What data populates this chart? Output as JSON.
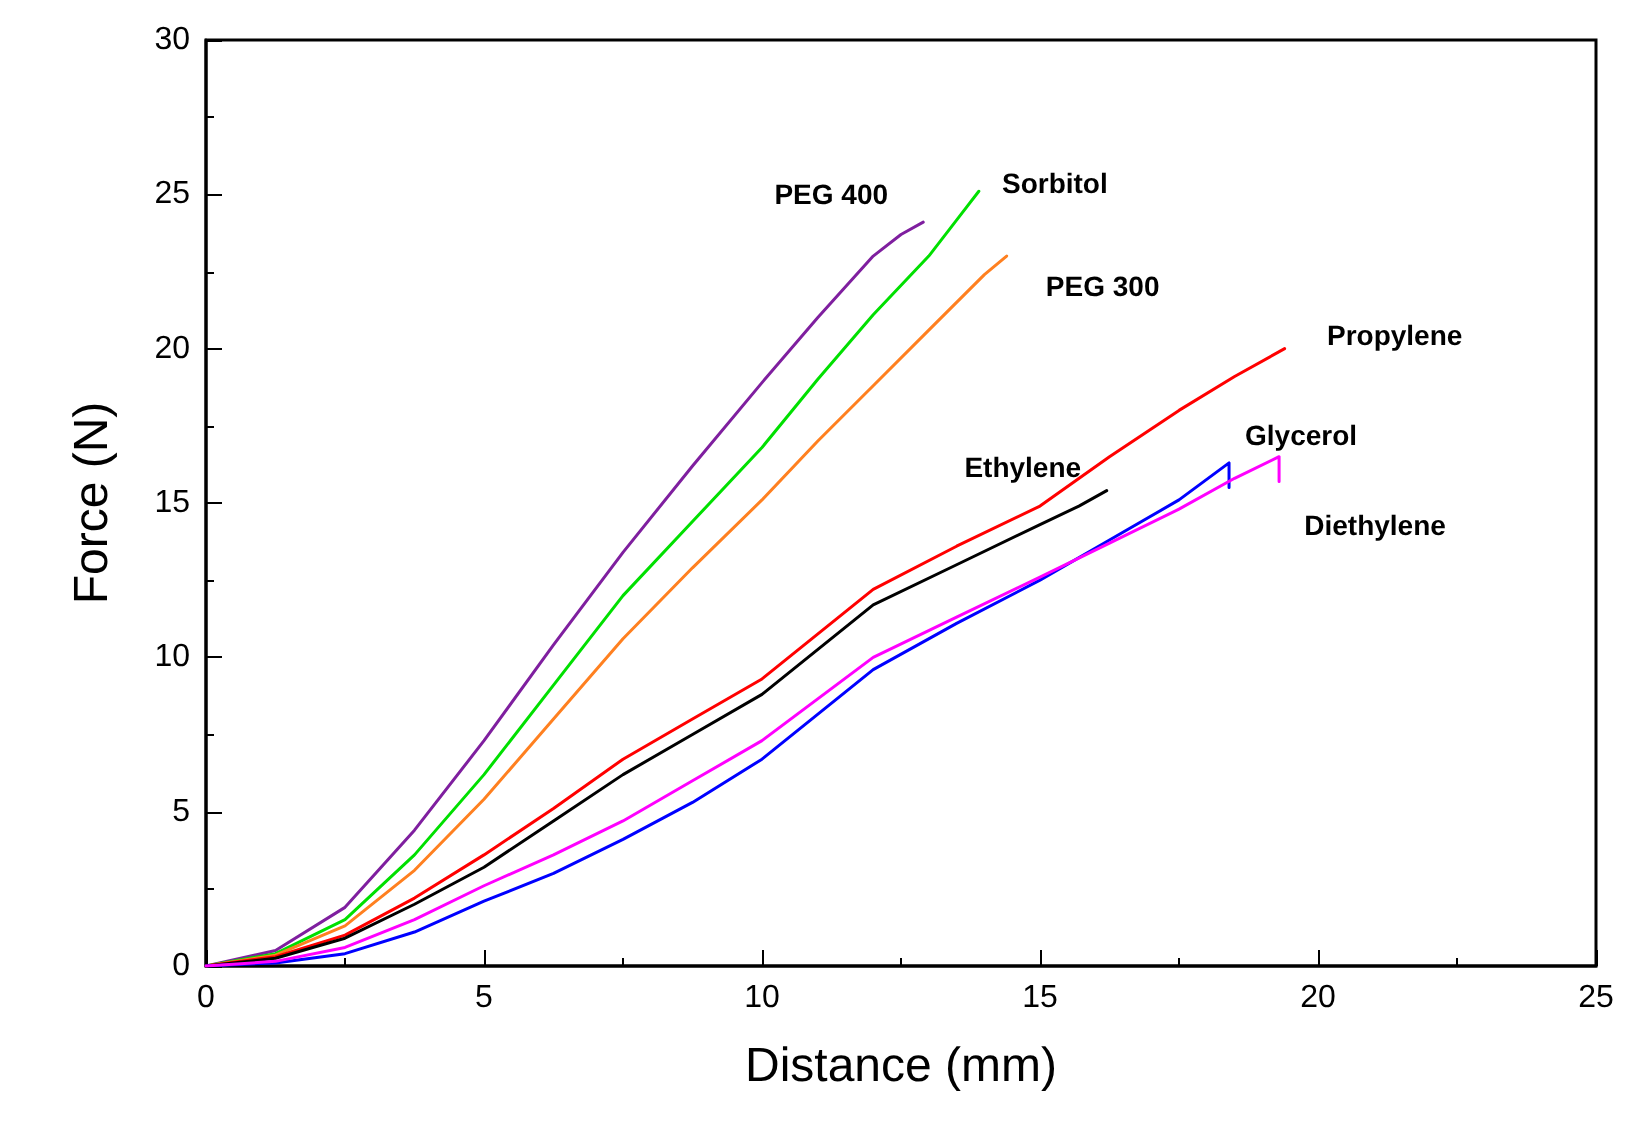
{
  "chart_data": {
    "type": "line",
    "xlabel": "Distance (mm)",
    "ylabel": "Force (N)",
    "xlim": [
      0,
      25
    ],
    "ylim": [
      0,
      30
    ],
    "xticks": [
      0,
      5,
      10,
      15,
      20,
      25
    ],
    "yticks": [
      0,
      5,
      10,
      15,
      20,
      25,
      30
    ],
    "grid": false,
    "legend": false,
    "marker": "none",
    "line_style": "solid",
    "series": [
      {
        "name": "PEG 400",
        "color": "#7f1f9f",
        "x": [
          0,
          1.25,
          2.5,
          3.75,
          5,
          6.25,
          7.5,
          8.75,
          10,
          11,
          12,
          12.5,
          12.9
        ],
        "values": [
          0,
          0.5,
          1.9,
          4.4,
          7.3,
          10.4,
          13.4,
          16.2,
          18.9,
          21.0,
          23.0,
          23.7,
          24.1
        ]
      },
      {
        "name": "Sorbitol",
        "color": "#00e000",
        "x": [
          0,
          1.25,
          2.5,
          3.75,
          5,
          6.25,
          7.5,
          8.75,
          10,
          11,
          12,
          13,
          13.6,
          13.9
        ],
        "values": [
          0,
          0.4,
          1.5,
          3.6,
          6.2,
          9.1,
          12.0,
          14.4,
          16.8,
          19.0,
          21.1,
          23.0,
          24.4,
          25.1
        ]
      },
      {
        "name": "PEG 300",
        "color": "#ff8020",
        "x": [
          0,
          1.25,
          2.5,
          3.75,
          5,
          6.25,
          7.5,
          8.75,
          10,
          11,
          12,
          13,
          14,
          14.4
        ],
        "values": [
          0,
          0.35,
          1.3,
          3.1,
          5.4,
          8.0,
          10.6,
          12.9,
          15.1,
          17.0,
          18.8,
          20.6,
          22.4,
          23.0
        ]
      },
      {
        "name": "Propylene",
        "color": "#ff0000",
        "x": [
          0,
          1.25,
          2.5,
          3.75,
          5,
          6.25,
          7.5,
          8.75,
          10,
          12,
          13.5,
          15,
          16.25,
          17.5,
          18.5,
          19.4
        ],
        "values": [
          0,
          0.3,
          1.0,
          2.2,
          3.6,
          5.1,
          6.7,
          8.0,
          9.3,
          12.2,
          13.6,
          14.9,
          16.5,
          18.0,
          19.1,
          20.0
        ]
      },
      {
        "name": "Ethylene",
        "color": "#000000",
        "x": [
          0,
          1.25,
          2.5,
          3.75,
          5,
          6.25,
          7.5,
          8.75,
          10,
          12,
          13.5,
          15,
          15.7,
          16.2
        ],
        "values": [
          0,
          0.25,
          0.9,
          2.0,
          3.2,
          4.7,
          6.2,
          7.5,
          8.8,
          11.7,
          13.0,
          14.3,
          14.9,
          15.4
        ]
      },
      {
        "name": "Glycerol",
        "color": "#0000ff",
        "x": [
          0,
          1.25,
          2.5,
          3.75,
          5,
          6.25,
          7.5,
          8.75,
          10,
          12,
          13.5,
          15,
          16.25,
          17.5,
          18.4,
          18.4
        ],
        "values": [
          0,
          0.1,
          0.4,
          1.1,
          2.1,
          3.0,
          4.1,
          5.3,
          6.7,
          9.6,
          11.1,
          12.5,
          13.8,
          15.1,
          16.3,
          15.5
        ]
      },
      {
        "name": "Diethylene",
        "color": "#ff00ff",
        "x": [
          0,
          1.25,
          2.5,
          3.75,
          5,
          6.25,
          7.5,
          8.75,
          10,
          12,
          13.5,
          15,
          16.25,
          17.5,
          18.5,
          19.3,
          19.3
        ],
        "values": [
          0,
          0.15,
          0.6,
          1.5,
          2.6,
          3.6,
          4.7,
          6.0,
          7.3,
          10.0,
          11.3,
          12.6,
          13.7,
          14.8,
          15.8,
          16.5,
          15.7
        ]
      }
    ]
  }
}
